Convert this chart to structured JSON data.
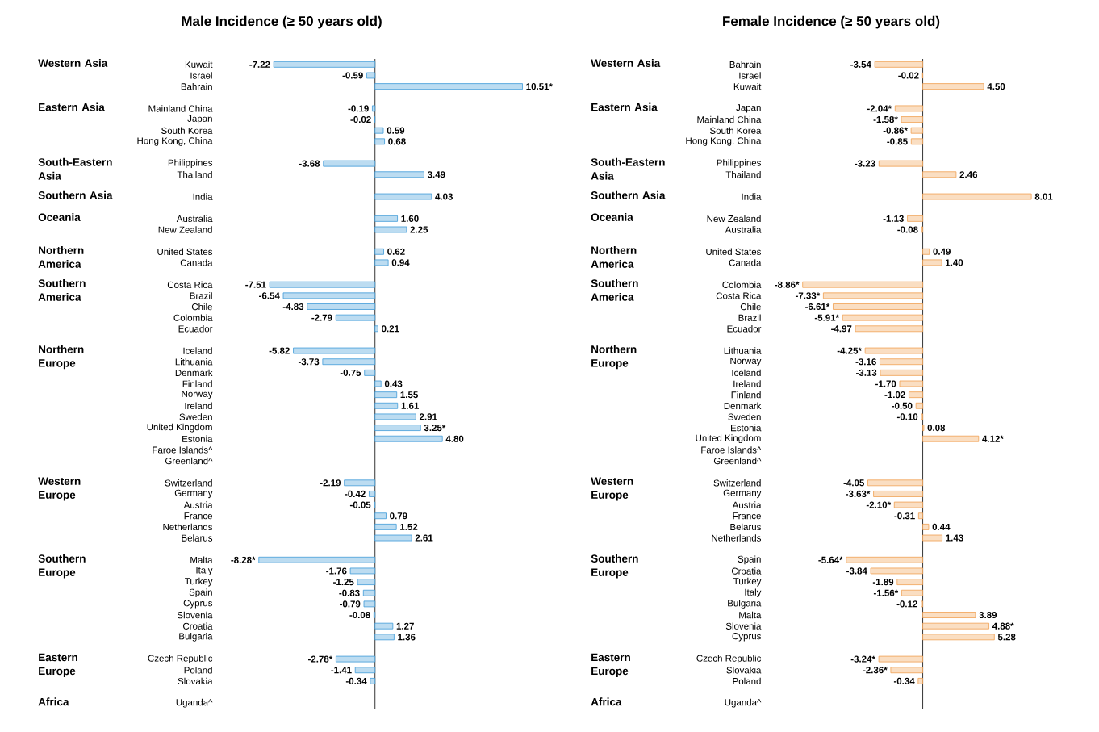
{
  "chart_data": [
    {
      "type": "bar",
      "orientation": "horizontal",
      "title": "Male Incidence (≥ 50 years old)",
      "color": "#3f9ad8",
      "tick_labels": "y",
      "categories": [
        "Kuwait",
        "Israel",
        "Bahrain",
        null,
        "Mainland China",
        "Japan",
        "South Korea",
        "Hong Kong, China",
        null,
        "Philippines",
        "Thailand",
        null,
        "India",
        null,
        "Australia",
        "New Zealand",
        null,
        "United States",
        "Canada",
        null,
        "Costa Rica",
        "Brazil",
        "Chile",
        "Colombia",
        "Ecuador",
        null,
        "Iceland",
        "Lithuania",
        "Denmark",
        "Finland",
        "Norway",
        "Ireland",
        "Sweden",
        "United Kingdom",
        "Estonia",
        "Faroe Islands^",
        "Greenland^",
        null,
        "Switzerland",
        "Germany",
        "Austria",
        "France",
        "Netherlands",
        "Belarus",
        null,
        "Malta",
        "Italy",
        "Turkey",
        "Spain",
        "Cyprus",
        "Slovenia",
        "Croatia",
        "Bulgaria",
        null,
        "Czech Republic",
        "Poland",
        "Slovakia",
        null,
        "Uganda^"
      ],
      "values": [
        -7.22,
        -0.59,
        10.51,
        null,
        -0.19,
        -0.02,
        0.59,
        0.68,
        null,
        -3.68,
        3.49,
        null,
        4.03,
        null,
        1.6,
        2.25,
        null,
        0.62,
        0.94,
        null,
        -7.51,
        -6.54,
        -4.83,
        -2.79,
        0.21,
        null,
        -5.82,
        -3.73,
        -0.75,
        0.43,
        1.55,
        1.61,
        2.91,
        3.25,
        4.8,
        null,
        null,
        null,
        -2.19,
        -0.42,
        -0.05,
        0.79,
        1.52,
        2.61,
        null,
        -8.28,
        -1.76,
        -1.25,
        -0.83,
        -0.79,
        -0.08,
        1.27,
        1.36,
        null,
        -2.78,
        -1.41,
        -0.34,
        null,
        null
      ],
      "value_labels": [
        "-7.22",
        "-0.59",
        "10.51*",
        null,
        "-0.19",
        "-0.02",
        "0.59",
        "0.68",
        null,
        "-3.68",
        "3.49",
        null,
        "4.03",
        null,
        "1.60",
        "2.25",
        null,
        "0.62",
        "0.94",
        null,
        "-7.51",
        "-6.54",
        "-4.83",
        "-2.79",
        "0.21",
        null,
        "-5.82",
        "-3.73",
        "-0.75",
        "0.43",
        "1.55",
        "1.61",
        "2.91",
        "3.25*",
        "4.80",
        null,
        null,
        null,
        "-2.19",
        "-0.42",
        "-0.05",
        "0.79",
        "1.52",
        "2.61",
        null,
        "-8.28*",
        "-1.76",
        "-1.25",
        "-0.83",
        "-0.79",
        "-0.08",
        "1.27",
        "1.36",
        null,
        "-2.78*",
        "-1.41",
        "-0.34",
        null,
        null
      ],
      "annotations": [
        "Western Asia",
        "Eastern Asia",
        "South-Eastern Asia",
        "Southern Asia",
        "Oceania",
        "Northern America",
        "Southern America",
        "Northern Europe",
        "Western Europe",
        "Southern Europe",
        "Eastern Europe",
        "Africa"
      ]
    },
    {
      "type": "bar",
      "orientation": "horizontal",
      "title": "Female Incidence (≥ 50 years old)",
      "color": "#f0a050",
      "tick_labels": "y",
      "categories": [
        "Bahrain",
        "Israel",
        "Kuwait",
        null,
        "Japan",
        "Mainland China",
        "South Korea",
        "Hong Kong, China",
        null,
        "Philippines",
        "Thailand",
        null,
        "India",
        null,
        "New Zealand",
        "Australia",
        null,
        "United States",
        "Canada",
        null,
        "Colombia",
        "Costa Rica",
        "Chile",
        "Brazil",
        "Ecuador",
        null,
        "Lithuania",
        "Norway",
        "Iceland",
        "Ireland",
        "Finland",
        "Denmark",
        "Sweden",
        "Estonia",
        "United Kingdom",
        "Faroe Islands^",
        "Greenland^",
        null,
        "Switzerland",
        "Germany",
        "Austria",
        "France",
        "Belarus",
        "Netherlands",
        null,
        "Spain",
        "Croatia",
        "Turkey",
        "Italy",
        "Bulgaria",
        "Malta",
        "Slovenia",
        "Cyprus",
        null,
        "Czech Republic",
        "Slovakia",
        "Poland",
        null,
        "Uganda^"
      ],
      "values": [
        -3.54,
        -0.02,
        4.5,
        null,
        -2.04,
        -1.58,
        -0.86,
        -0.85,
        null,
        -3.23,
        2.46,
        null,
        8.01,
        null,
        -1.13,
        -0.08,
        null,
        0.49,
        1.4,
        null,
        -8.86,
        -7.33,
        -6.61,
        -5.91,
        -4.97,
        null,
        -4.25,
        -3.16,
        -3.13,
        -1.7,
        -1.02,
        -0.5,
        -0.1,
        0.08,
        4.12,
        null,
        null,
        null,
        -4.05,
        -3.63,
        -2.1,
        -0.31,
        0.44,
        1.43,
        null,
        -5.64,
        -3.84,
        -1.89,
        -1.56,
        -0.12,
        3.89,
        4.88,
        5.28,
        null,
        -3.24,
        -2.36,
        -0.34,
        null,
        null
      ],
      "value_labels": [
        "-3.54",
        "-0.02",
        "4.50",
        null,
        "-2.04*",
        "-1.58*",
        "-0.86*",
        "-0.85",
        null,
        "-3.23",
        "2.46",
        null,
        "8.01",
        null,
        "-1.13",
        "-0.08",
        null,
        "0.49",
        "1.40",
        null,
        "-8.86*",
        "-7.33*",
        "-6.61*",
        "-5.91*",
        "-4.97",
        null,
        "-4.25*",
        "-3.16",
        "-3.13",
        "-1.70",
        "-1.02",
        "-0.50",
        "-0.10",
        "0.08",
        "4.12*",
        null,
        null,
        null,
        "-4.05",
        "-3.63*",
        "-2.10*",
        "-0.31",
        "0.44",
        "1.43",
        null,
        "-5.64*",
        "-3.84",
        "-1.89",
        "-1.56*",
        "-0.12",
        "3.89",
        "4.88*",
        "5.28",
        null,
        "-3.24*",
        "-2.36*",
        "-0.34",
        null,
        null
      ],
      "annotations": [
        "Western Asia",
        "Eastern Asia",
        "South-Eastern Asia",
        "Southern Asia",
        "Oceania",
        "Northern America",
        "Southern America",
        "Northern Europe",
        "Western Europe",
        "Southern Europe",
        "Eastern Europe",
        "Africa"
      ]
    }
  ]
}
